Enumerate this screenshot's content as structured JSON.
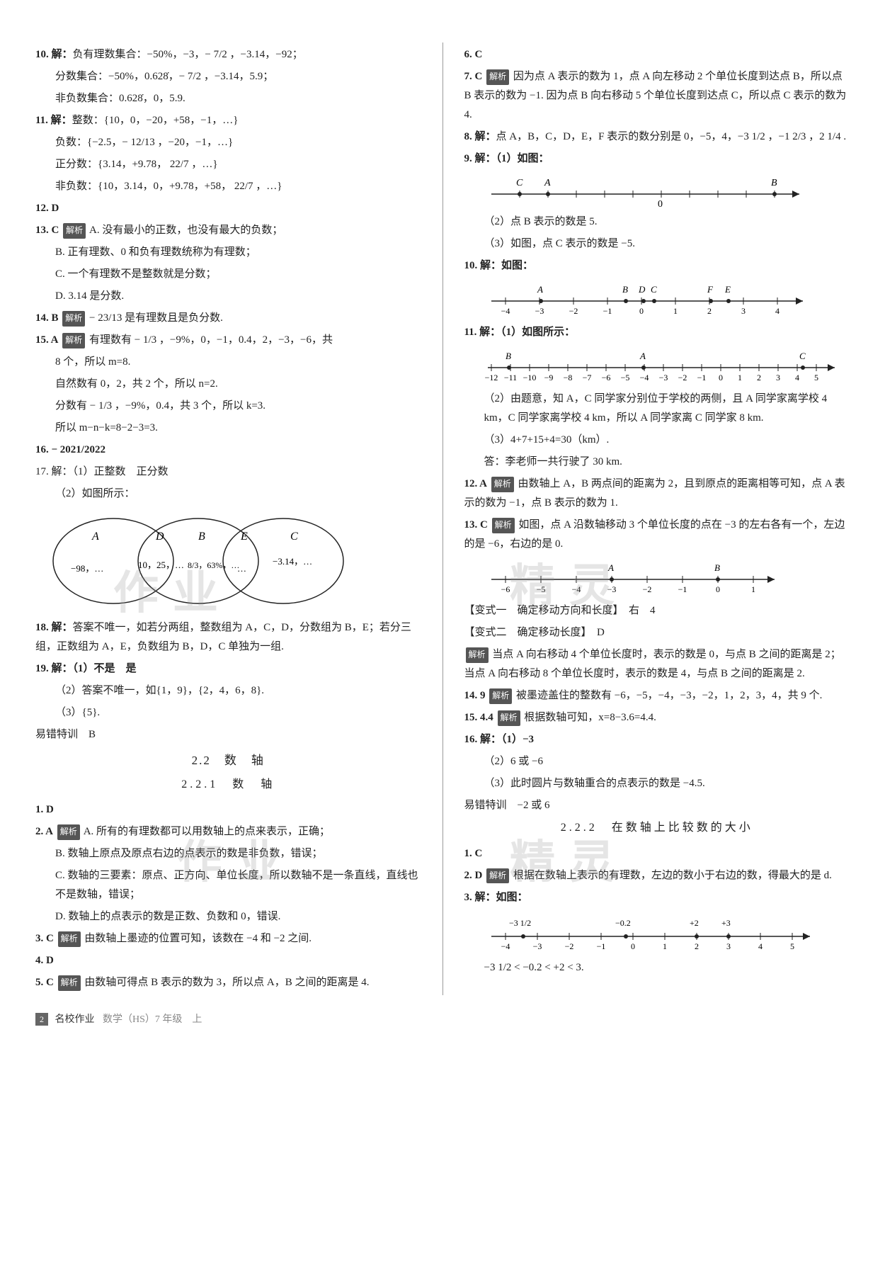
{
  "left": {
    "q10": {
      "prefix": "10. 解：",
      "l1": "负有理数集合：−50%，−3，− 7/2 ，−3.14，−92；",
      "l2": "分数集合：−50%，0.628̇，− 7/2 ，−3.14，5.9；",
      "l3": "非负数集合：0.628̇，0，5.9."
    },
    "q11": {
      "prefix": "11. 解：",
      "l1": "整数：{10，0，−20，+58，−1，…}",
      "l2": "负数：{−2.5，− 12/13 ，−20，−1，…}",
      "l3": "正分数：{3.14，+9.78， 22/7 ，…}",
      "l4": "非负数：{10，3.14，0，+9.78，+58， 22/7 ，…}"
    },
    "q12": "12. D",
    "q13": {
      "head": "13. C",
      "a": "A. 没有最小的正数，也没有最大的负数；",
      "b": "B. 正有理数、0 和负有理数统称为有理数；",
      "c": "C. 一个有理数不是整数就是分数；",
      "d": "D. 3.14 是分数."
    },
    "q14": {
      "head": "14. B",
      "exp": "− 23/13 是有理数且是负分数."
    },
    "q15": {
      "head": "15. A",
      "exp1": "有理数有 − 1/3 ，−9%，0，−1，0.4，2，−3，−6，共",
      "exp2": "8 个，所以 m=8.",
      "exp3": "自然数有 0，2，共 2 个，所以 n=2.",
      "exp4": "分数有 − 1/3 ，−9%，0.4，共 3 个，所以 k=3.",
      "exp5": "所以 m−n−k=8−2−3=3."
    },
    "q16": "16. − 2021/2022",
    "q17": {
      "head": "17. 解：（1）正整数　正分数",
      "l2": "（2）如图所示："
    },
    "venn": {
      "A": "A",
      "B": "B",
      "C": "C",
      "D": "D",
      "E": "E",
      "A_vals": "−98，…",
      "D_vals": "10，25，…",
      "B_vals": "8/3，63%，…",
      "E_vals": "…",
      "C_vals": "−3.14，…"
    },
    "q18": {
      "head": "18. 解：",
      "body": "答案不唯一，如若分两组，整数组为 A，C，D，分数组为 B，E；若分三组，正数组为 A，E，负数组为 B，D，C 单独为一组."
    },
    "q19": {
      "head": "19. 解：（1）不是　是",
      "l2": "（2）答案不唯一，如{1，9}，{2，4，6，8}.",
      "l3": "（3）{5}."
    },
    "err": "易错特训　B",
    "sec_title": "2.2　数　轴",
    "sec_sub": "2.2.1　数　轴",
    "s1": "1. D",
    "s2": {
      "head": "2. A",
      "a": "A. 所有的有理数都可以用数轴上的点来表示，正确；",
      "b": "B. 数轴上原点及原点右边的点表示的数是非负数，错误；",
      "c": "C. 数轴的三要素：原点、正方向、单位长度，所以数轴不是一条直线，直线也不是数轴，错误；",
      "d": "D. 数轴上的点表示的数是正数、负数和 0，错误."
    },
    "s3": {
      "head": "3. C",
      "exp": "由数轴上墨迹的位置可知，该数在 −4 和 −2 之间."
    },
    "s4": "4. D",
    "s5": {
      "head": "5. C",
      "exp": "由数轴可得点 B 表示的数为 3，所以点 A，B 之间的距离是 4."
    }
  },
  "right": {
    "q6": "6. C",
    "q7": {
      "head": "7. C",
      "exp": "因为点 A 表示的数为 1，点 A 向左移动 2 个单位长度到达点 B，所以点 B 表示的数为 −1. 因为点 B 向右移动 5 个单位长度到达点 C，所以点 C 表示的数为 4."
    },
    "q8": {
      "head": "8. 解：",
      "body": "点 A，B，C，D，E，F 表示的数分别是 0，−5，4，−3 1/2 ，−1 2/3 ，2 1/4 ."
    },
    "q9": {
      "head": "9. 解：（1）如图：",
      "nl": {
        "C": "C",
        "A": "A",
        "B": "B",
        "zero": "0"
      },
      "l2": "（2）点 B 表示的数是 5.",
      "l3": "（3）如图，点 C 表示的数是 −5."
    },
    "q10": {
      "head": "10. 解：如图：",
      "nl": {
        "ticks": [
          "−4",
          "−3",
          "−2",
          "−1",
          "0",
          "1",
          "2",
          "3",
          "4"
        ],
        "lbls": [
          "A",
          "B",
          "D",
          "C",
          "F",
          "E"
        ]
      }
    },
    "q11": {
      "head": "11. 解：（1）如图所示：",
      "nl": {
        "B": "B",
        "A": "A",
        "C": "C",
        "ticks": [
          "−12",
          "−11",
          "−10",
          "−9",
          "−8",
          "−7",
          "−6",
          "−5",
          "−4",
          "−3",
          "−2",
          "−1",
          "0",
          "1",
          "2",
          "3",
          "4",
          "5"
        ]
      },
      "l2": "（2）由题意，知 A，C 同学家分别位于学校的两侧，且 A 同学家离学校 4 km，C 同学家离学校 4 km，所以 A 同学家离 C 同学家 8 km.",
      "l3": "（3）4+7+15+4=30（km）.",
      "l4": "答：李老师一共行驶了 30 km."
    },
    "q12": {
      "head": "12. A",
      "exp": "由数轴上 A，B 两点间的距离为 2，且到原点的距离相等可知，点 A 表示的数为 −1，点 B 表示的数为 1."
    },
    "q13": {
      "head": "13. C",
      "exp": "如图，点 A 沿数轴移动 3 个单位长度的点在 −3 的左右各有一个，左边的是 −6，右边的是 0.",
      "nl": {
        "ticks": [
          "−6",
          "−5",
          "−4",
          "−3",
          "−2",
          "−1",
          "0",
          "1"
        ],
        "A": "A",
        "B": "B"
      }
    },
    "var1": "【变式一　确定移动方向和长度】　右　4",
    "var2": "【变式二　确定移动长度】　D",
    "var2_exp": "当点 A 向右移动 4 个单位长度时，表示的数是 0，与点 B 之间的距离是 2；当点 A 向右移动 8 个单位长度时，表示的数是 4，与点 B 之间的距离是 2.",
    "q14": {
      "head": "14. 9",
      "exp": "被墨迹盖住的整数有 −6，−5，−4，−3，−2，1，2，3，4，共 9 个."
    },
    "q15": {
      "head": "15. 4.4",
      "exp": "根据数轴可知，x=8−3.6=4.4."
    },
    "q16": {
      "head": "16. 解：（1）−3",
      "l2": "（2）6 或 −6",
      "l3": "（3）此时圆片与数轴重合的点表示的数是 −4.5."
    },
    "err": "易错特训　−2 或 6",
    "sec_sub": "2.2.2　在数轴上比较数的大小",
    "t1": "1. C",
    "t2": {
      "head": "2. D",
      "exp": "根据在数轴上表示的有理数，左边的数小于右边的数，得最大的是 d."
    },
    "t3": {
      "head": "3. 解：如图：",
      "nl": {
        "ticks": [
          "−4",
          "−3",
          "−2",
          "−1",
          "0",
          "1",
          "2",
          "3",
          "4",
          "5"
        ],
        "pts": [
          "−3 1/2",
          "−0.2",
          "+2",
          "+3"
        ]
      },
      "res": "−3 1/2 < −0.2 < +2 < 3."
    }
  },
  "footer": {
    "page": "2",
    "book": "名校作业",
    "subj": "数学（HS）7 年级　上"
  },
  "tag_label": "解析",
  "colors": {
    "tag_bg": "#555555",
    "text": "#222222"
  }
}
